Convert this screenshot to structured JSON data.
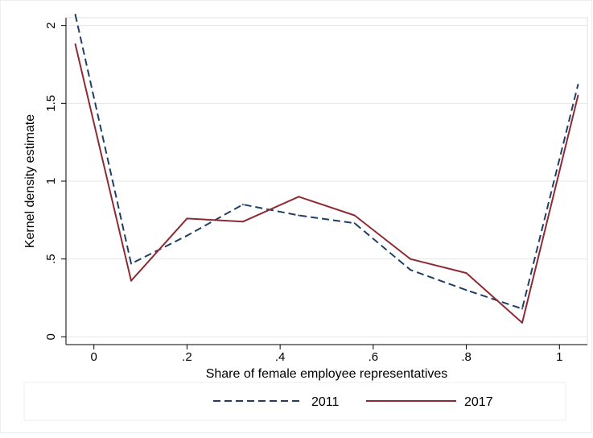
{
  "colors": {
    "series_2011": "#1f3f66",
    "series_2017": "#8e2a33",
    "grid": "#e6e6e6",
    "frame": "#000000"
  },
  "chart_data": {
    "type": "line",
    "title": "",
    "xlabel": "Share of female employee representatives",
    "ylabel": "Kernel density estimate",
    "xlim": [
      -0.06,
      1.06
    ],
    "ylim": [
      -0.05,
      2.05
    ],
    "xticks": [
      0,
      0.2,
      0.4,
      0.6,
      0.8,
      1
    ],
    "xtick_labels": [
      "0",
      ".2",
      ".4",
      ".6",
      ".8",
      "1"
    ],
    "yticks": [
      0,
      0.5,
      1,
      1.5,
      2
    ],
    "ytick_labels": [
      "0",
      ".5",
      "1",
      "1.5",
      "2"
    ],
    "grid": "horizontal",
    "legend_position": "bottom",
    "series": [
      {
        "name": "2011",
        "style": "dashed",
        "x": [
          -0.04,
          0.08,
          0.2,
          0.32,
          0.44,
          0.56,
          0.68,
          0.8,
          0.92,
          1.04
        ],
        "y": [
          2.07,
          0.47,
          0.65,
          0.85,
          0.78,
          0.73,
          0.43,
          0.3,
          0.18,
          1.62
        ]
      },
      {
        "name": "2017",
        "style": "solid",
        "x": [
          -0.04,
          0.08,
          0.2,
          0.32,
          0.44,
          0.56,
          0.68,
          0.8,
          0.92,
          1.04
        ],
        "y": [
          1.88,
          0.36,
          0.76,
          0.74,
          0.9,
          0.78,
          0.5,
          0.41,
          0.09,
          1.55
        ]
      }
    ]
  }
}
